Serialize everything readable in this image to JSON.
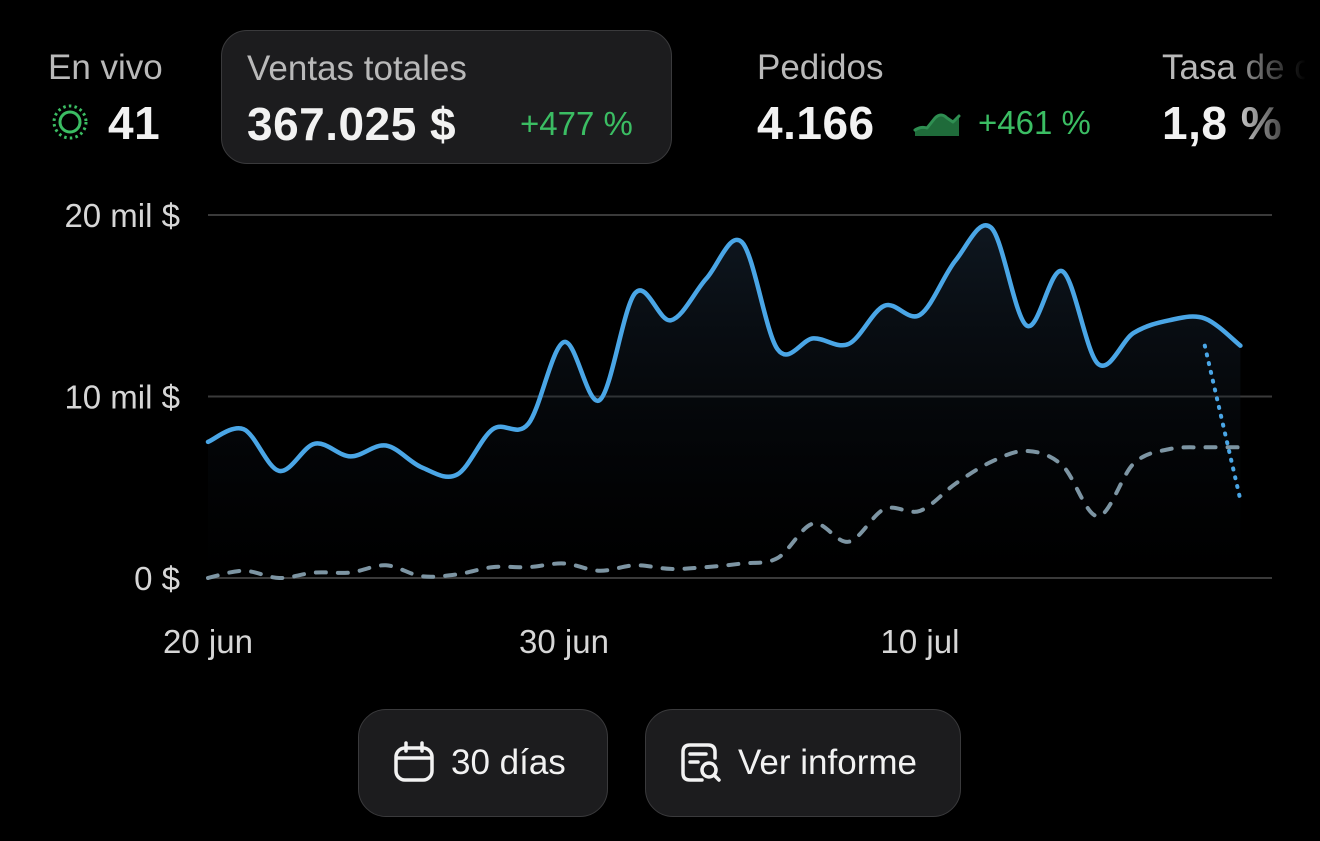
{
  "metrics": {
    "live": {
      "label": "En vivo",
      "value": "41",
      "icon": "live-pulse-icon"
    },
    "sales": {
      "label": "Ventas totales",
      "value": "367.025 $",
      "change": "+477 %"
    },
    "orders": {
      "label": "Pedidos",
      "value": "4.166",
      "change": "+461 %",
      "icon": "trend-up-icon"
    },
    "conversion": {
      "label": "Tasa de c",
      "value": "1,8 %"
    }
  },
  "colors": {
    "accent": "#4aa6e6",
    "positive": "#3bbd63",
    "comparison": "#7d95a3",
    "card": "#1c1c1e",
    "gridline": "#3a3a3a"
  },
  "chart_data": {
    "type": "line",
    "x_tick_labels": [
      "20 jun",
      "30 jun",
      "10 jul"
    ],
    "y_tick_labels": [
      "0 $",
      "10 mil $",
      "20 mil $"
    ],
    "ylim": [
      0,
      20000
    ],
    "grid": true,
    "x": [
      "20 jun",
      "21 jun",
      "22 jun",
      "23 jun",
      "24 jun",
      "25 jun",
      "26 jun",
      "27 jun",
      "28 jun",
      "29 jun",
      "30 jun",
      "1 jul",
      "2 jul",
      "3 jul",
      "4 jul",
      "5 jul",
      "6 jul",
      "7 jul",
      "8 jul",
      "9 jul",
      "10 jul",
      "11 jul",
      "12 jul",
      "13 jul",
      "14 jul",
      "15 jul",
      "16 jul",
      "17 jul",
      "18 jul",
      "19 jul"
    ],
    "series": [
      {
        "style": "solid-area",
        "values": [
          7500,
          8200,
          5900,
          7400,
          6700,
          7300,
          6100,
          5700,
          8200,
          8500,
          13000,
          9800,
          15700,
          14200,
          16500,
          18500,
          12600,
          13200,
          12900,
          15000,
          14500,
          17500,
          19300,
          13900,
          16900,
          11800,
          13500,
          14200,
          14300,
          12800
        ]
      },
      {
        "style": "dotted-tail",
        "values": [
          null,
          null,
          null,
          null,
          null,
          null,
          null,
          null,
          null,
          null,
          null,
          null,
          null,
          null,
          null,
          null,
          null,
          null,
          null,
          null,
          null,
          null,
          null,
          null,
          null,
          null,
          null,
          null,
          12800,
          4300
        ]
      },
      {
        "style": "dashed-comparison",
        "values": [
          0,
          400,
          0,
          300,
          300,
          700,
          100,
          200,
          600,
          600,
          800,
          400,
          700,
          500,
          600,
          800,
          1100,
          3000,
          2000,
          3800,
          3700,
          5200,
          6400,
          7000,
          6200,
          3400,
          6300,
          7100,
          7200,
          7200
        ]
      }
    ]
  },
  "buttons": {
    "range": {
      "label": "30 días",
      "icon": "calendar-icon"
    },
    "report": {
      "label": "Ver informe",
      "icon": "report-search-icon"
    }
  }
}
